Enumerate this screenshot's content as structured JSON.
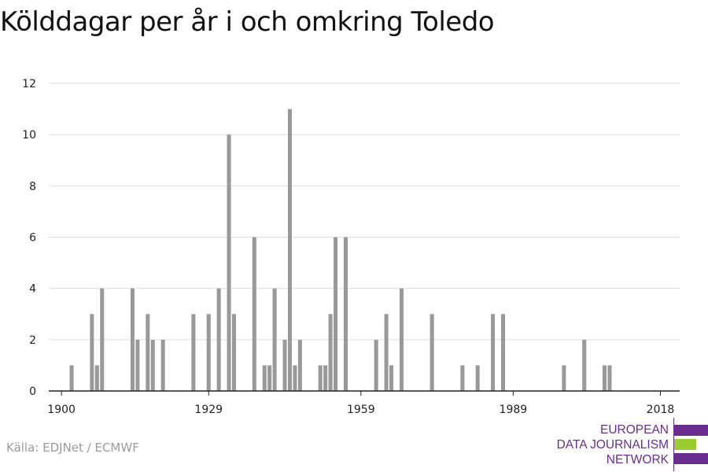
{
  "title": "Kölddagar per år i och omkring Toledo",
  "source": "Källa: EDJNet / ECMWF",
  "logo": {
    "lines": [
      "EUROPEAN",
      "DATA JOURNALISM",
      "NETWORK"
    ],
    "colors": {
      "purple": "#6a2c8e",
      "green": "#9acd32"
    }
  },
  "colors": {
    "bar": "#999999",
    "grid": "#dddddd",
    "axis": "#222222",
    "text": "#222222"
  },
  "chart_data": {
    "type": "bar",
    "title": "Kölddagar per år i och omkring Toledo",
    "xlabel": "",
    "ylabel": "",
    "xlim": [
      1900,
      2018
    ],
    "ylim": [
      0,
      12
    ],
    "x_ticks": [
      1900,
      1929,
      1959,
      1989,
      2018
    ],
    "y_ticks": [
      0,
      2,
      4,
      6,
      8,
      10,
      12
    ],
    "grid": true,
    "x": [
      1902,
      1906,
      1907,
      1908,
      1914,
      1915,
      1917,
      1918,
      1920,
      1926,
      1929,
      1931,
      1933,
      1934,
      1938,
      1940,
      1941,
      1942,
      1944,
      1945,
      1946,
      1947,
      1951,
      1952,
      1953,
      1954,
      1956,
      1962,
      1964,
      1965,
      1967,
      1973,
      1979,
      1982,
      1985,
      1987,
      1999,
      2003,
      2007,
      2008
    ],
    "values": [
      1,
      3,
      1,
      4,
      4,
      2,
      3,
      2,
      2,
      3,
      3,
      4,
      10,
      3,
      6,
      1,
      1,
      4,
      2,
      11,
      1,
      2,
      1,
      1,
      3,
      6,
      6,
      2,
      3,
      1,
      4,
      3,
      1,
      1,
      3,
      3,
      1,
      2,
      1,
      1
    ]
  }
}
